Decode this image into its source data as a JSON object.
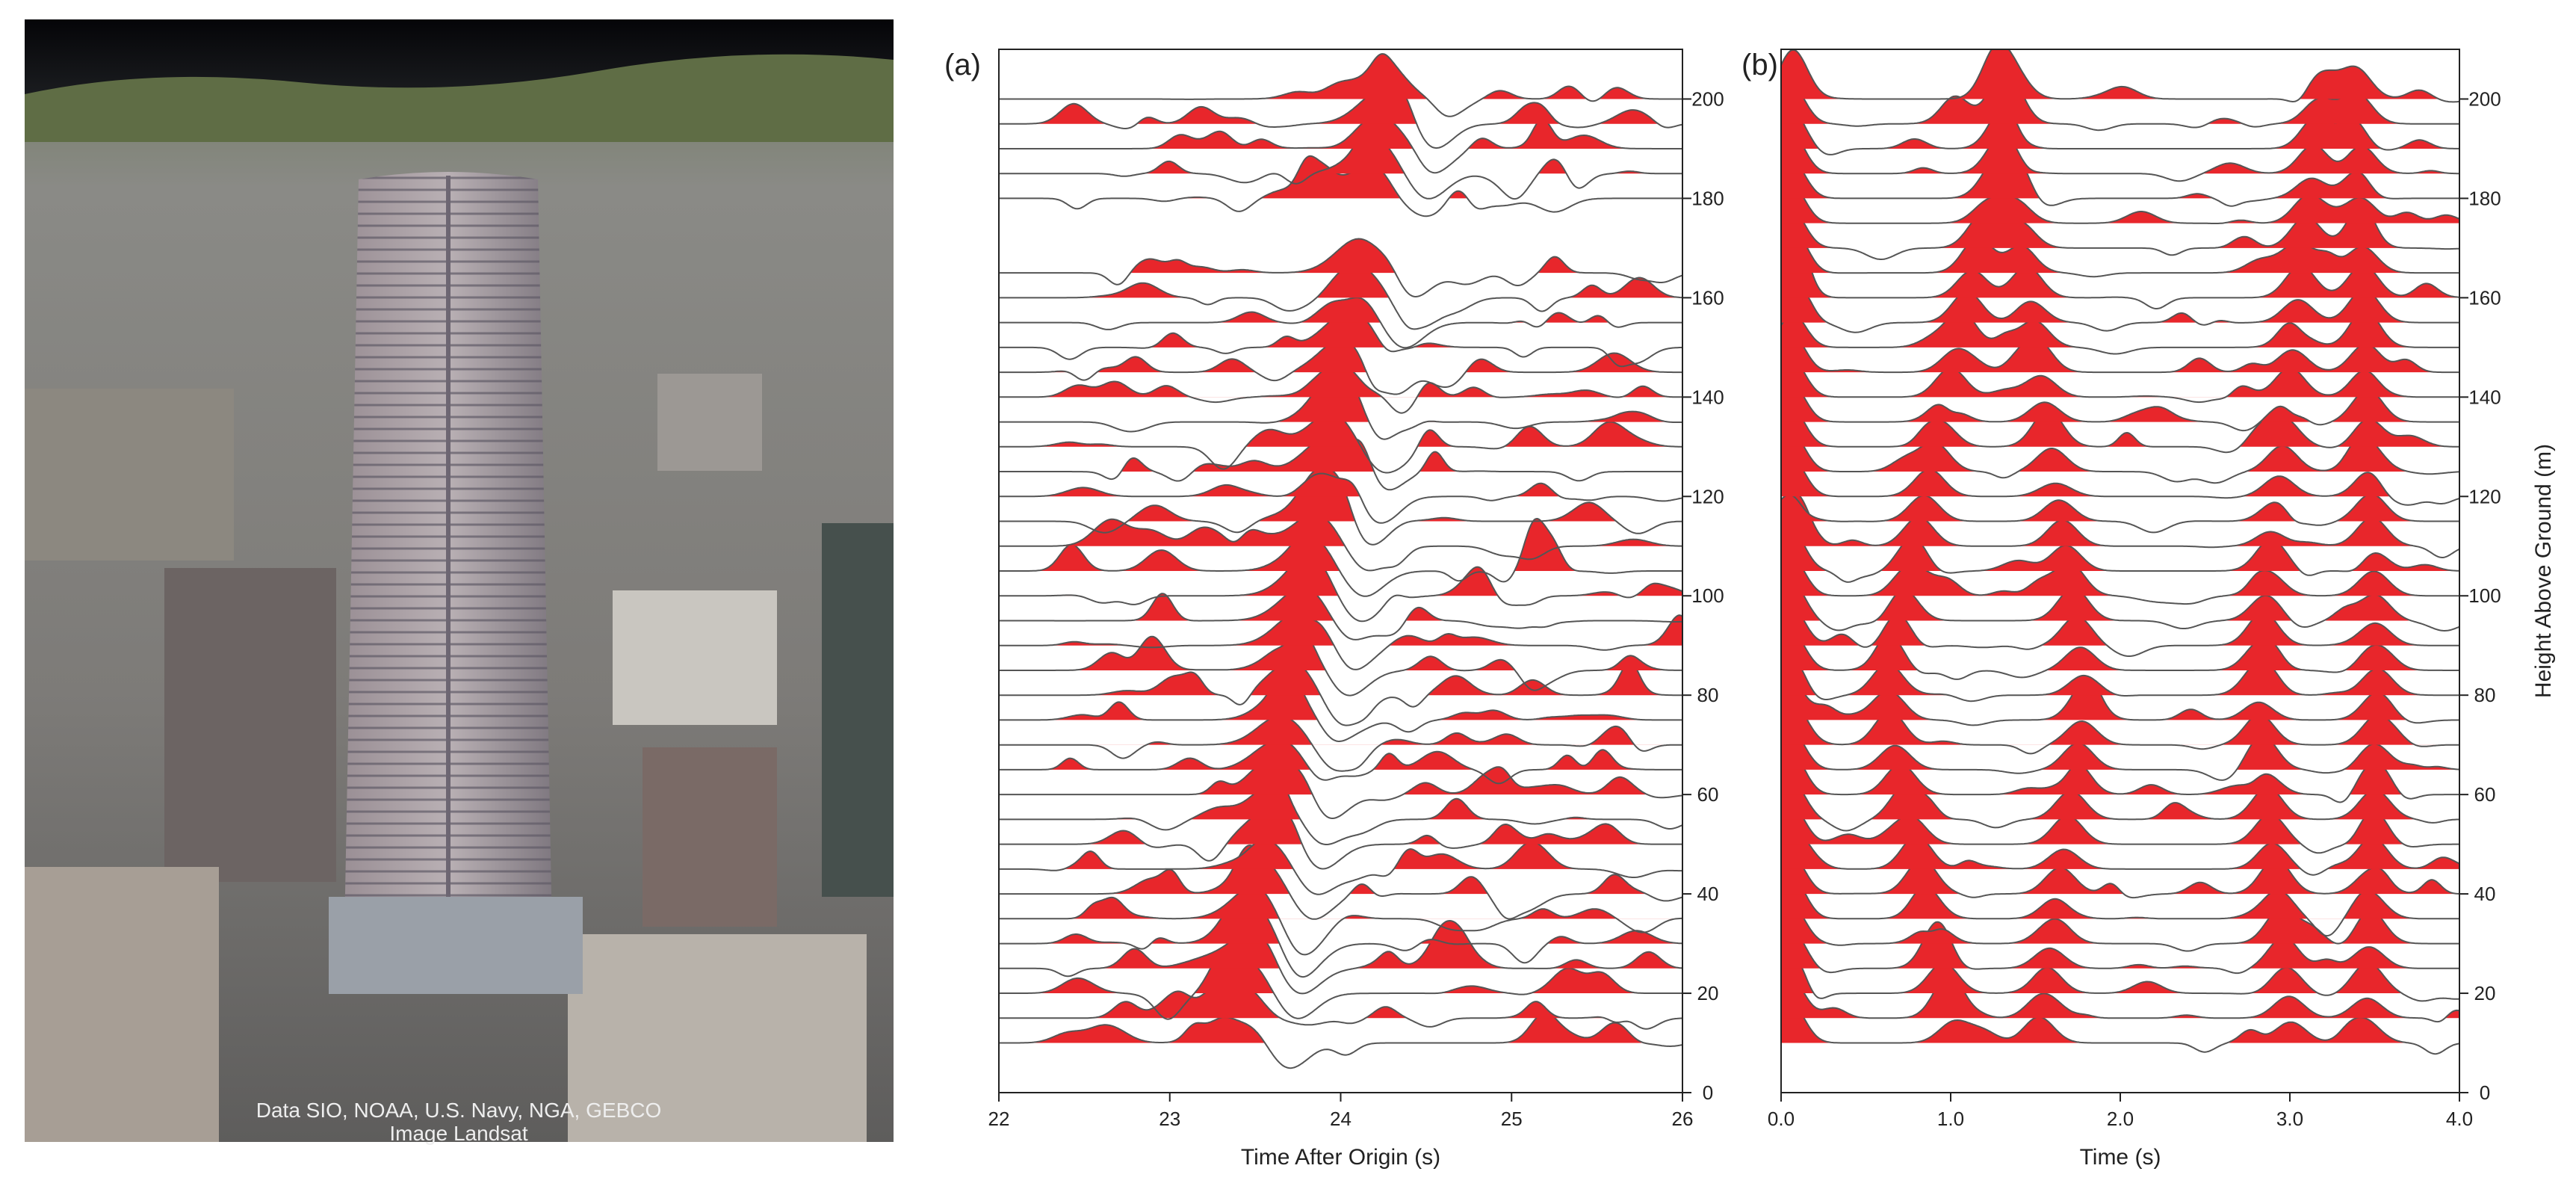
{
  "photo": {
    "attribution": [
      "Data SIO, NOAA, U.S. Navy, NGA, GEBCO",
      "Image Landsat"
    ]
  },
  "chart_data": [
    {
      "type": "wiggle",
      "label": "(a)",
      "x_label": "Time After Origin (s)",
      "xlim": [
        22,
        26
      ],
      "xticks": [
        22,
        23,
        24,
        25,
        26
      ],
      "ylim": [
        0,
        210
      ],
      "yticks": [
        0,
        20,
        40,
        60,
        80,
        100,
        120,
        140,
        160,
        180,
        200
      ],
      "fill_color": "#e8262b",
      "line_color": "#555555",
      "traces": [
        10,
        15,
        20,
        25,
        30,
        35,
        40,
        45,
        50,
        55,
        60,
        65,
        70,
        75,
        80,
        85,
        90,
        95,
        100,
        105,
        110,
        115,
        120,
        125,
        130,
        135,
        140,
        145,
        150,
        155,
        160,
        165,
        180,
        185,
        190,
        195,
        200
      ]
    },
    {
      "type": "wiggle",
      "label": "(b)",
      "x_label": "Time (s)",
      "y_label": "Height Above Ground (m)",
      "xlim": [
        0,
        4
      ],
      "xticks": [
        {
          "value": 0,
          "label": "0.0"
        },
        {
          "value": 1,
          "label": "1.0"
        },
        {
          "value": 2,
          "label": "2.0"
        },
        {
          "value": 3,
          "label": "3.0"
        },
        {
          "value": 4,
          "label": "4.0"
        }
      ],
      "ylim": [
        0,
        210
      ],
      "yticks": [
        0,
        20,
        40,
        60,
        80,
        100,
        120,
        140,
        160,
        180,
        200
      ],
      "fill_color": "#e8262b",
      "line_color": "#555555",
      "traces": [
        10,
        15,
        20,
        25,
        30,
        35,
        40,
        45,
        50,
        55,
        60,
        65,
        70,
        75,
        80,
        85,
        90,
        95,
        100,
        105,
        110,
        115,
        120,
        125,
        130,
        135,
        140,
        145,
        150,
        155,
        160,
        165,
        170,
        175,
        180,
        185,
        190,
        195,
        200
      ]
    }
  ]
}
